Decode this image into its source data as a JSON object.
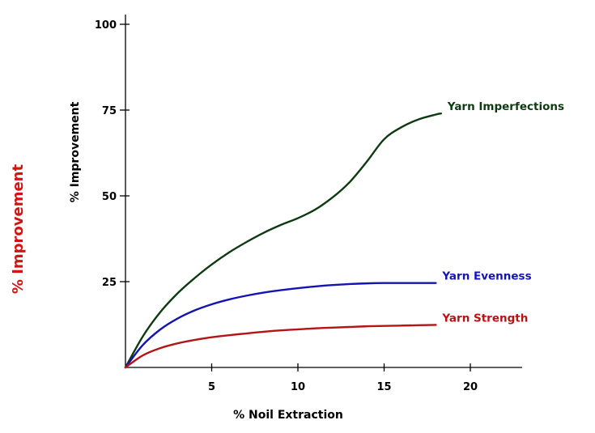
{
  "chart_data": {
    "type": "line",
    "xlabel": "% Noil Extraction",
    "ylabel": "% Improvement",
    "side_label": "% Improvement",
    "xlim": [
      0,
      23
    ],
    "ylim": [
      0,
      100
    ],
    "x_ticks": [
      5,
      10,
      15,
      20
    ],
    "y_ticks": [
      25,
      50,
      75,
      100
    ],
    "grid": false,
    "legend": "inline labels at line ends",
    "series": [
      {
        "name": "Yarn Imperfections",
        "color": "#0d3a10",
        "points": [
          [
            0,
            0
          ],
          [
            1,
            9
          ],
          [
            2,
            16
          ],
          [
            3,
            21.5
          ],
          [
            4,
            26
          ],
          [
            5,
            30
          ],
          [
            6,
            33.5
          ],
          [
            7,
            36.5
          ],
          [
            8,
            39.2
          ],
          [
            9,
            41.5
          ],
          [
            10,
            43.5
          ],
          [
            11,
            46
          ],
          [
            12,
            49.5
          ],
          [
            13,
            54
          ],
          [
            14,
            60
          ],
          [
            15,
            66.5
          ],
          [
            16,
            70
          ],
          [
            17,
            72.3
          ],
          [
            18,
            73.7
          ],
          [
            18.3,
            74
          ]
        ]
      },
      {
        "name": "Yarn Evenness",
        "color": "#1414b4",
        "points": [
          [
            0,
            0
          ],
          [
            1,
            6.5
          ],
          [
            2,
            11
          ],
          [
            3,
            14.2
          ],
          [
            4,
            16.6
          ],
          [
            5,
            18.4
          ],
          [
            6,
            19.8
          ],
          [
            7,
            20.9
          ],
          [
            8,
            21.8
          ],
          [
            9,
            22.5
          ],
          [
            10,
            23.1
          ],
          [
            11,
            23.6
          ],
          [
            12,
            24
          ],
          [
            13,
            24.3
          ],
          [
            14,
            24.5
          ],
          [
            15,
            24.6
          ],
          [
            16,
            24.6
          ],
          [
            17,
            24.6
          ],
          [
            18,
            24.6
          ]
        ]
      },
      {
        "name": "Yarn Strength",
        "color": "#b41414",
        "points": [
          [
            0,
            0
          ],
          [
            1,
            3.5
          ],
          [
            2,
            5.6
          ],
          [
            3,
            7
          ],
          [
            4,
            8
          ],
          [
            5,
            8.8
          ],
          [
            6,
            9.4
          ],
          [
            7,
            9.9
          ],
          [
            8,
            10.4
          ],
          [
            9,
            10.8
          ],
          [
            10,
            11.1
          ],
          [
            11,
            11.4
          ],
          [
            12,
            11.6
          ],
          [
            13,
            11.8
          ],
          [
            14,
            12
          ],
          [
            15,
            12.1
          ],
          [
            16,
            12.2
          ],
          [
            17,
            12.3
          ],
          [
            18,
            12.4
          ]
        ]
      }
    ]
  }
}
